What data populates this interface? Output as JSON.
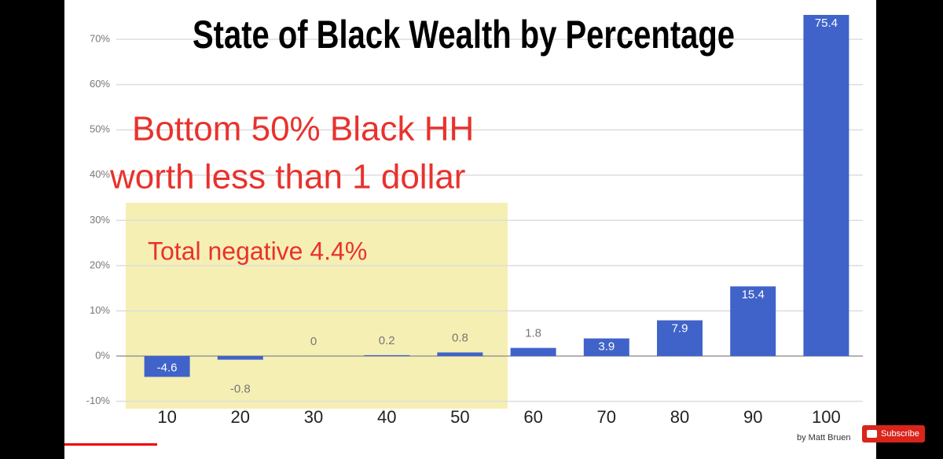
{
  "chart_data": {
    "type": "bar",
    "title": "State of Black Wealth by Percentage",
    "categories": [
      "10",
      "20",
      "30",
      "40",
      "50",
      "60",
      "70",
      "80",
      "90",
      "100"
    ],
    "values": [
      -4.6,
      -0.8,
      0,
      0.2,
      0.8,
      1.8,
      3.9,
      7.9,
      15.4,
      75.4
    ],
    "color": "#3f63c9",
    "ylim": [
      -10,
      78
    ],
    "yticks": [
      {
        "value": -10,
        "label": "-10%"
      },
      {
        "value": 0,
        "label": "0%"
      },
      {
        "value": 10,
        "label": "10%"
      },
      {
        "value": 20,
        "label": "20%"
      },
      {
        "value": 30,
        "label": "30%"
      },
      {
        "value": 40,
        "label": "40%"
      },
      {
        "value": 50,
        "label": "50%"
      },
      {
        "value": 60,
        "label": "60%"
      },
      {
        "value": 70,
        "label": "70%"
      }
    ],
    "grid": true,
    "annotations": [
      "Bottom 50% Black HH",
      "worth less than 1 dollar",
      "Total negative 4.4%"
    ],
    "credit": "by Matt Bruen"
  },
  "ui": {
    "subscribe": "Subscribe"
  }
}
